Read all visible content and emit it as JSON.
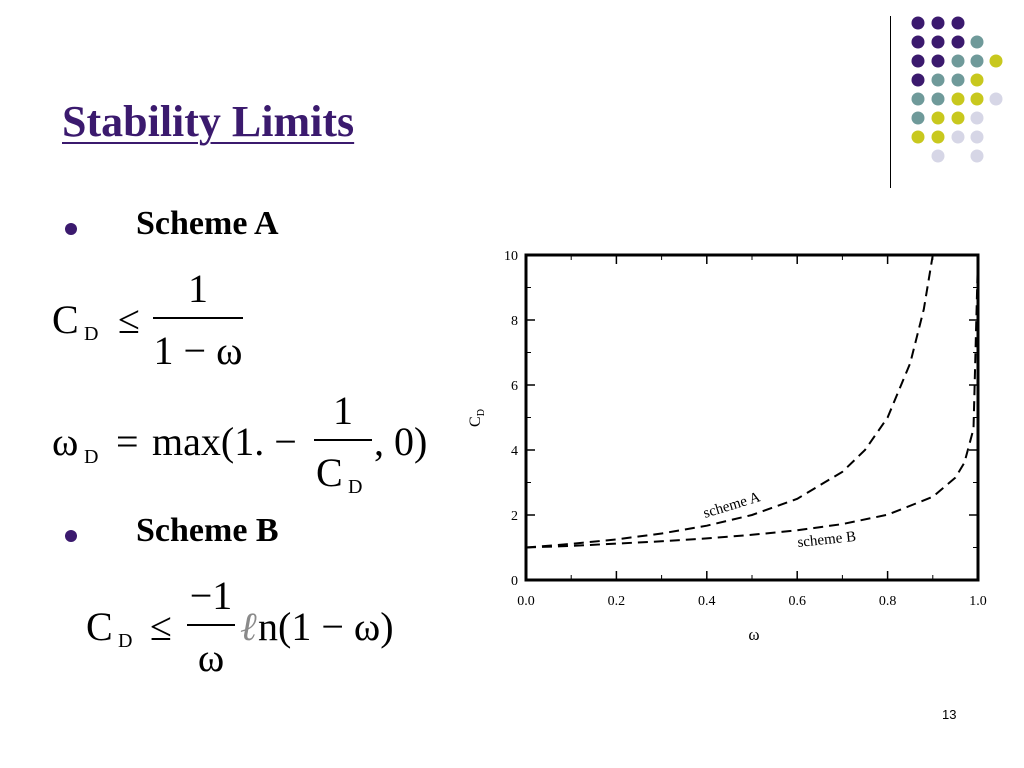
{
  "slide": {
    "title": "Stability Limits",
    "page_number": "13",
    "bullets": [
      {
        "label": "Scheme A"
      },
      {
        "label": "Scheme B"
      }
    ],
    "equations": {
      "a1": {
        "lhs_main": "C",
        "lhs_sub": "D",
        "rel": "≤",
        "numerator": "1",
        "denominator": "1 − ω"
      },
      "a2": {
        "lhs_main": "ω",
        "lhs_sub": "D",
        "rel": "=",
        "prefix": "max(1. −",
        "numerator": "1",
        "den_main": "C",
        "den_sub": "D",
        "suffix": ", 0)"
      },
      "b1": {
        "lhs_main": "C",
        "lhs_sub": "D",
        "rel": "≤",
        "numerator": "−1",
        "denominator": "ω",
        "ell": "ℓ",
        "func": "n(1 − ω)"
      }
    },
    "colors": {
      "title": "#3b1a6e",
      "dot_purple": "#3b1a6e",
      "dot_teal": "#6f9a9a",
      "dot_yellow": "#c8c81e",
      "dot_lavender": "#d6d6e6"
    }
  },
  "chart_data": {
    "type": "line",
    "xlabel": "ω",
    "ylabel_main": "C",
    "ylabel_sub": "D",
    "xlim": [
      0,
      1
    ],
    "ylim": [
      0,
      10
    ],
    "x_ticks": [
      "0.0",
      "0.2",
      "0.4",
      "0.6",
      "0.8",
      "1.0"
    ],
    "y_ticks": [
      "0",
      "2",
      "4",
      "6",
      "8",
      "10"
    ],
    "series": [
      {
        "name": "scheme A",
        "x": [
          0.0,
          0.1,
          0.2,
          0.3,
          0.4,
          0.5,
          0.6,
          0.7,
          0.75,
          0.8,
          0.85,
          0.88,
          0.9
        ],
        "y": [
          1.0,
          1.11,
          1.25,
          1.43,
          1.67,
          2.0,
          2.5,
          3.33,
          4.0,
          5.0,
          6.67,
          8.33,
          10.0
        ]
      },
      {
        "name": "scheme B",
        "x": [
          0.0,
          0.1,
          0.2,
          0.3,
          0.4,
          0.5,
          0.6,
          0.7,
          0.8,
          0.9,
          0.95,
          0.97,
          0.99,
          1.0
        ],
        "y": [
          1.0,
          1.05,
          1.12,
          1.19,
          1.28,
          1.39,
          1.53,
          1.72,
          2.01,
          2.56,
          3.15,
          3.61,
          4.65,
          10.0
        ]
      }
    ]
  }
}
